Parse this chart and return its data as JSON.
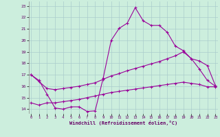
{
  "xlabel": "Windchill (Refroidissement éolien,°C)",
  "background_color": "#cceedd",
  "grid_color": "#aacccc",
  "line_color": "#990099",
  "x_ticks": [
    0,
    1,
    2,
    3,
    4,
    5,
    6,
    7,
    8,
    9,
    10,
    11,
    12,
    13,
    14,
    15,
    16,
    17,
    18,
    19,
    20,
    21,
    22,
    23
  ],
  "y_ticks": [
    14,
    15,
    16,
    17,
    18,
    19,
    20,
    21,
    22,
    23
  ],
  "xlim": [
    -0.3,
    23.3
  ],
  "ylim": [
    13.6,
    23.4
  ],
  "line1": [
    17.0,
    16.5,
    15.3,
    14.1,
    14.0,
    14.2,
    14.2,
    13.8,
    13.85,
    16.7,
    20.0,
    21.05,
    21.5,
    22.85,
    21.7,
    21.3,
    21.3,
    20.7,
    19.5,
    19.1,
    18.4,
    17.5,
    16.5,
    16.0
  ],
  "line2": [
    17.0,
    16.4,
    15.8,
    15.7,
    15.8,
    15.9,
    16.0,
    16.15,
    16.3,
    16.6,
    16.9,
    17.1,
    17.35,
    17.55,
    17.75,
    17.95,
    18.15,
    18.4,
    18.65,
    19.0,
    18.4,
    18.2,
    17.8,
    16.05
  ],
  "line3": [
    14.55,
    14.35,
    14.55,
    14.55,
    14.65,
    14.75,
    14.85,
    15.0,
    15.15,
    15.3,
    15.45,
    15.55,
    15.65,
    15.75,
    15.85,
    15.95,
    16.05,
    16.15,
    16.25,
    16.35,
    16.25,
    16.15,
    15.95,
    15.95
  ]
}
